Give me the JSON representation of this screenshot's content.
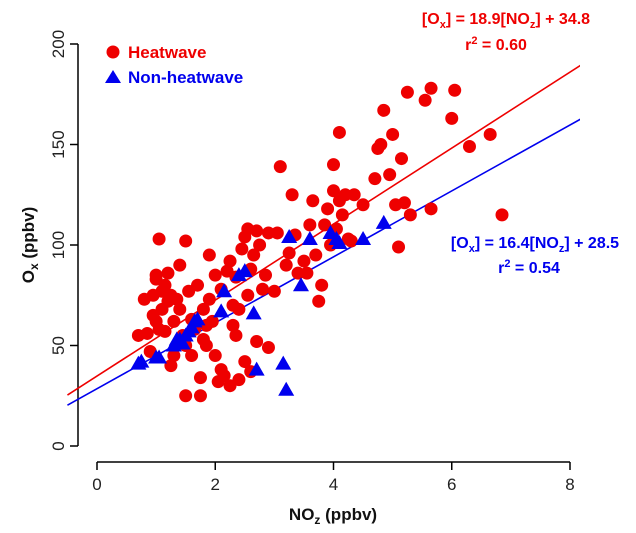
{
  "chart_data": {
    "type": "scatter",
    "xlabel": {
      "main": "NO",
      "sub": "z",
      "unit": " (ppbv)"
    },
    "ylabel": {
      "main": "O",
      "sub": "x",
      "unit": " (ppbv)"
    },
    "xlim": [
      0,
      8
    ],
    "ylim": [
      0,
      200
    ],
    "xticks": [
      0,
      2,
      4,
      6,
      8
    ],
    "yticks": [
      0,
      50,
      100,
      150,
      200
    ],
    "grid": false,
    "legend_position": "top-left",
    "series": [
      {
        "name": "Heatwave",
        "color": "#ee0000",
        "marker": "circle",
        "fit": {
          "slope": 18.9,
          "intercept": 34.8
        },
        "equation": {
          "p1": "[O",
          "s1": "x",
          "p2": "] = 18.9[NO",
          "s2": "z",
          "p3": "] + 34.8"
        },
        "r2": {
          "pre": "r",
          "sup": "2",
          "post": " = 0.60"
        },
        "points": [
          [
            0.7,
            55
          ],
          [
            0.8,
            73
          ],
          [
            0.85,
            56
          ],
          [
            0.9,
            47
          ],
          [
            0.95,
            65
          ],
          [
            0.95,
            75
          ],
          [
            1.0,
            62
          ],
          [
            1.0,
            83
          ],
          [
            1.0,
            85
          ],
          [
            1.05,
            103
          ],
          [
            1.05,
            58
          ],
          [
            1.1,
            77
          ],
          [
            1.1,
            68
          ],
          [
            1.15,
            80
          ],
          [
            1.15,
            57
          ],
          [
            1.2,
            86
          ],
          [
            1.2,
            72
          ],
          [
            1.25,
            40
          ],
          [
            1.25,
            75
          ],
          [
            1.3,
            45
          ],
          [
            1.3,
            62
          ],
          [
            1.35,
            73
          ],
          [
            1.4,
            90
          ],
          [
            1.4,
            68
          ],
          [
            1.45,
            55
          ],
          [
            1.5,
            102
          ],
          [
            1.5,
            25
          ],
          [
            1.5,
            50
          ],
          [
            1.55,
            77
          ],
          [
            1.6,
            45
          ],
          [
            1.6,
            63
          ],
          [
            1.65,
            58
          ],
          [
            1.7,
            80
          ],
          [
            1.75,
            34
          ],
          [
            1.75,
            25
          ],
          [
            1.8,
            68
          ],
          [
            1.8,
            53
          ],
          [
            1.85,
            60
          ],
          [
            1.85,
            50
          ],
          [
            1.9,
            95
          ],
          [
            1.9,
            73
          ],
          [
            1.95,
            62
          ],
          [
            2.0,
            85
          ],
          [
            2.0,
            45
          ],
          [
            2.05,
            32
          ],
          [
            2.1,
            78
          ],
          [
            2.1,
            38
          ],
          [
            2.15,
            35
          ],
          [
            2.2,
            87
          ],
          [
            2.25,
            30
          ],
          [
            2.25,
            92
          ],
          [
            2.3,
            60
          ],
          [
            2.3,
            70
          ],
          [
            2.35,
            55
          ],
          [
            2.35,
            84
          ],
          [
            2.4,
            33
          ],
          [
            2.4,
            68
          ],
          [
            2.45,
            98
          ],
          [
            2.5,
            104
          ],
          [
            2.5,
            42
          ],
          [
            2.55,
            108
          ],
          [
            2.55,
            75
          ],
          [
            2.6,
            88
          ],
          [
            2.6,
            37
          ],
          [
            2.65,
            95
          ],
          [
            2.7,
            107
          ],
          [
            2.7,
            52
          ],
          [
            2.75,
            100
          ],
          [
            2.8,
            78
          ],
          [
            2.85,
            85
          ],
          [
            2.9,
            106
          ],
          [
            2.9,
            49
          ],
          [
            3.0,
            77
          ],
          [
            3.05,
            106
          ],
          [
            3.1,
            139
          ],
          [
            3.2,
            90
          ],
          [
            3.25,
            96
          ],
          [
            3.3,
            125
          ],
          [
            3.35,
            105
          ],
          [
            3.4,
            86
          ],
          [
            3.5,
            92
          ],
          [
            3.55,
            86
          ],
          [
            3.6,
            110
          ],
          [
            3.65,
            122
          ],
          [
            3.7,
            95
          ],
          [
            3.75,
            72
          ],
          [
            3.8,
            80
          ],
          [
            3.85,
            110
          ],
          [
            3.9,
            118
          ],
          [
            3.95,
            100
          ],
          [
            4.0,
            127
          ],
          [
            4.0,
            140
          ],
          [
            4.05,
            108
          ],
          [
            4.1,
            122
          ],
          [
            4.1,
            156
          ],
          [
            4.15,
            115
          ],
          [
            4.2,
            125
          ],
          [
            4.25,
            103
          ],
          [
            4.3,
            102
          ],
          [
            4.35,
            125
          ],
          [
            4.5,
            120
          ],
          [
            4.7,
            133
          ],
          [
            4.75,
            148
          ],
          [
            4.8,
            150
          ],
          [
            4.85,
            167
          ],
          [
            4.95,
            135
          ],
          [
            5.0,
            155
          ],
          [
            5.05,
            120
          ],
          [
            5.1,
            99
          ],
          [
            5.15,
            143
          ],
          [
            5.2,
            121
          ],
          [
            5.25,
            176
          ],
          [
            5.3,
            115
          ],
          [
            5.55,
            172
          ],
          [
            5.65,
            178
          ],
          [
            5.65,
            118
          ],
          [
            6.0,
            163
          ],
          [
            6.05,
            177
          ],
          [
            6.3,
            149
          ],
          [
            6.65,
            155
          ],
          [
            6.85,
            115
          ]
        ]
      },
      {
        "name": "Non-heatwave",
        "color": "#0000ee",
        "marker": "triangle",
        "fit": {
          "slope": 16.4,
          "intercept": 28.5
        },
        "equation": {
          "p1": "[O",
          "s1": "x",
          "p2": "] = 16.4[NO",
          "s2": "z",
          "p3": "] + 28.5"
        },
        "r2": {
          "pre": "r",
          "sup": "2",
          "post": " = 0.54"
        },
        "points": [
          [
            0.7,
            41
          ],
          [
            0.75,
            42
          ],
          [
            1.0,
            44
          ],
          [
            1.05,
            44
          ],
          [
            1.3,
            50
          ],
          [
            1.35,
            53
          ],
          [
            1.4,
            53
          ],
          [
            1.45,
            51
          ],
          [
            1.5,
            55
          ],
          [
            1.55,
            57
          ],
          [
            1.6,
            59
          ],
          [
            1.65,
            62
          ],
          [
            1.7,
            63
          ],
          [
            2.1,
            67
          ],
          [
            2.15,
            77
          ],
          [
            2.4,
            85
          ],
          [
            2.5,
            87
          ],
          [
            2.65,
            66
          ],
          [
            2.7,
            38
          ],
          [
            3.15,
            41
          ],
          [
            3.2,
            28
          ],
          [
            3.25,
            104
          ],
          [
            3.45,
            80
          ],
          [
            3.6,
            103
          ],
          [
            3.95,
            106
          ],
          [
            4.05,
            103
          ],
          [
            4.1,
            101
          ],
          [
            4.5,
            103
          ],
          [
            4.85,
            111
          ]
        ]
      }
    ]
  }
}
